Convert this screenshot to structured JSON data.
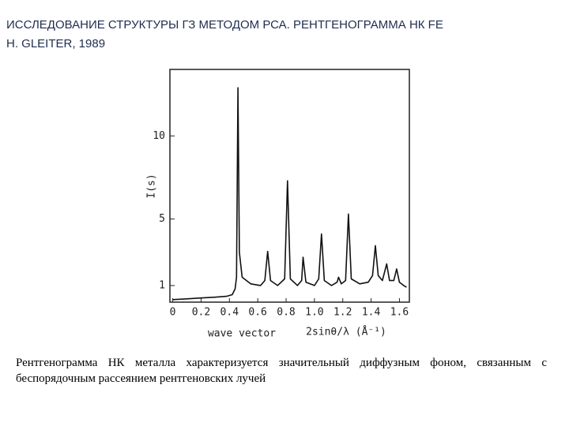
{
  "header": {
    "title_lines": [
      "ИССЛЕДОВАНИЕ СТРУКТУРЫ ГЗ МЕТОДОМ РСА. РЕНТГЕНОГРАММА НК FE",
      "H. GLEITER, 1989"
    ]
  },
  "chart_data": {
    "type": "line",
    "ylabel": "I(s)",
    "xlabel": "wave vector",
    "xlabel_formula": "2sinθ/λ (Å⁻¹)",
    "x": [
      0.0,
      0.1,
      0.2,
      0.3,
      0.38,
      0.42,
      0.44,
      0.45,
      0.46,
      0.47,
      0.49,
      0.55,
      0.62,
      0.65,
      0.67,
      0.69,
      0.74,
      0.79,
      0.81,
      0.83,
      0.88,
      0.91,
      0.92,
      0.94,
      1.0,
      1.03,
      1.05,
      1.07,
      1.12,
      1.16,
      1.17,
      1.19,
      1.22,
      1.24,
      1.26,
      1.32,
      1.38,
      1.41,
      1.43,
      1.45,
      1.48,
      1.51,
      1.53,
      1.56,
      1.58,
      1.6,
      1.63,
      1.65
    ],
    "values": [
      0.15,
      0.2,
      0.25,
      0.3,
      0.35,
      0.45,
      0.8,
      1.5,
      12.9,
      3,
      1.5,
      1.1,
      1.0,
      1.3,
      3.05,
      1.3,
      1.0,
      1.4,
      7.3,
      1.4,
      1.0,
      1.3,
      2.7,
      1.2,
      1.0,
      1.4,
      4.1,
      1.3,
      1.0,
      1.2,
      1.5,
      1.1,
      1.3,
      5.3,
      1.4,
      1.1,
      1.2,
      1.6,
      3.4,
      1.6,
      1.3,
      2.3,
      1.3,
      1.3,
      2.0,
      1.2,
      1.0,
      0.9
    ],
    "color": "#111111",
    "xlim": [
      -0.02,
      1.67
    ],
    "ylim": [
      0,
      14
    ],
    "xticks": [
      0,
      0.2,
      0.4,
      0.6,
      0.8,
      {
        "value": 1,
        "label": "1.0"
      },
      1.2,
      1.4,
      1.6
    ],
    "yticks": [
      1,
      5,
      10
    ]
  },
  "caption": "Рентгенограмма НК металла характеризуется значительный диффузным фоном, связанным с беспорядочным рассеянием рентгеновских лучей"
}
